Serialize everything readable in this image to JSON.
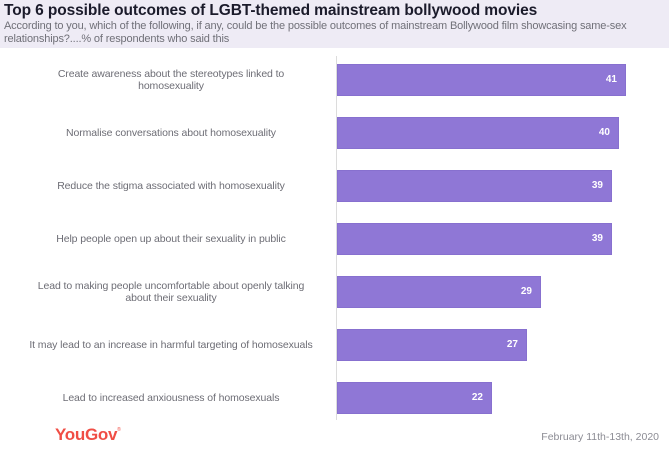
{
  "header": {
    "title": "Top 6 possible outcomes of LGBT-themed mainstream bollywood movies",
    "subtitle": "According to you, which of the following, if any, could be the possible outcomes of mainstream Bollywood film showcasing same-sex relationships?....% of respondents who said this"
  },
  "footer": {
    "brand": "YouGov",
    "date": "February 11th-13th, 2020"
  },
  "colors": {
    "bar": "#8f77d6",
    "header_bg": "#eeebf5",
    "brand": "#f04e45"
  },
  "chart_data": {
    "type": "bar",
    "orientation": "horizontal",
    "title": "Top 6 possible outcomes of LGBT-themed mainstream bollywood movies",
    "subtitle": "According to you, which of the following, if any, could be the possible outcomes of mainstream Bollywood film showcasing same-sex relationships?....% of respondents who said this",
    "xlabel": "",
    "ylabel": "",
    "unit": "% of respondents",
    "grid": false,
    "legend": null,
    "categories": [
      "Create awareness about the stereotypes linked to homosexuality",
      "Normalise conversations about homosexuality",
      "Reduce the stigma associated with homosexuality",
      "Help people open up about their sexuality in public",
      "Lead to making people uncomfortable about openly talking about their sexuality",
      "It may lead to an increase in harmful targeting of homosexuals",
      "Lead to increased anxiousness of homosexuals"
    ],
    "values": [
      41,
      40,
      39,
      39,
      29,
      27,
      22
    ],
    "xlim": [
      0,
      45
    ],
    "source_date": "February 11th-13th, 2020"
  },
  "rows": [
    {
      "line1": "Create awareness about the stereotypes linked to",
      "line2": "homosexuality",
      "value": "41"
    },
    {
      "line1": "Normalise conversations about homosexuality",
      "line2": "",
      "value": "40"
    },
    {
      "line1": "Reduce the stigma associated with homosexuality",
      "line2": "",
      "value": "39"
    },
    {
      "line1": "Help people open up about their sexuality in public",
      "line2": "",
      "value": "39"
    },
    {
      "line1": "Lead to making people uncomfortable about openly talking",
      "line2": "about their sexuality",
      "value": "29"
    },
    {
      "line1": "It may lead to an increase in harmful targeting of homosexuals",
      "line2": "",
      "value": "27"
    },
    {
      "line1": "Lead to increased anxiousness of homosexuals",
      "line2": "",
      "value": "22"
    }
  ]
}
